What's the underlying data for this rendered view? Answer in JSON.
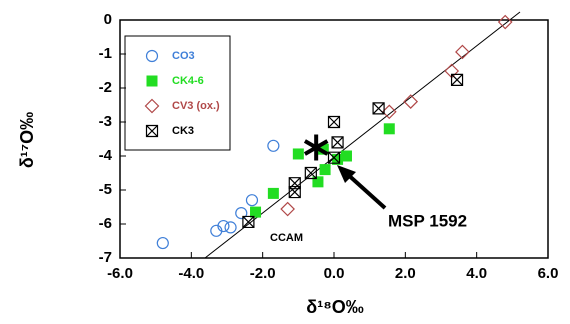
{
  "chart_data": {
    "type": "scatter",
    "xlabel": "δ¹⁸O‰",
    "ylabel": "δ¹⁷O‰",
    "xlim": [
      -6,
      6
    ],
    "ylim": [
      -7,
      0
    ],
    "xticks": [
      {
        "value": -6,
        "label": "-6.0"
      },
      {
        "value": -4,
        "label": "-4.0"
      },
      {
        "value": -2,
        "label": "-2.0"
      },
      {
        "value": 0,
        "label": "0.0"
      },
      {
        "value": 2,
        "label": "2.0"
      },
      {
        "value": 4,
        "label": "4.0"
      },
      {
        "value": 6,
        "label": "6.0"
      }
    ],
    "yticks": [
      0,
      -1,
      -2,
      -3,
      -4,
      -5,
      -6,
      -7
    ],
    "legend": "upper left",
    "series": [
      {
        "name": "CO3",
        "color": "#3f7fd8",
        "marker": "circle",
        "x": [
          -4.8,
          -3.3,
          -3.1,
          -2.9,
          -2.6,
          -2.3,
          -1.7
        ],
        "y": [
          -6.56,
          -6.2,
          -6.06,
          -6.1,
          -5.68,
          -5.3,
          -3.7
        ]
      },
      {
        "name": "CK4-6",
        "color": "#22dd22",
        "marker": "filled-square",
        "x": [
          -1.0,
          -1.7,
          -2.2,
          -0.3,
          -0.45,
          -0.25,
          0.1,
          0.35,
          1.55
        ],
        "y": [
          -3.94,
          -5.1,
          -5.65,
          -3.8,
          -4.76,
          -4.4,
          -4.1,
          -4.0,
          -3.2
        ]
      },
      {
        "name": "CV3 (ox.)",
        "color": "#b04848",
        "marker": "diamond",
        "x": [
          4.8,
          3.6,
          3.3,
          2.15,
          1.55,
          -1.3
        ],
        "y": [
          -0.06,
          -0.94,
          -1.5,
          -2.4,
          -2.7,
          -5.56
        ]
      },
      {
        "name": "CK3",
        "color": "#000000",
        "marker": "crossed-square",
        "x": [
          3.45,
          1.25,
          0.0,
          0.1,
          0.0,
          -0.65,
          -1.1,
          -1.1,
          -2.4
        ],
        "y": [
          -1.76,
          -2.6,
          -3.0,
          -3.6,
          -4.05,
          -4.5,
          -4.8,
          -5.06,
          -5.94
        ]
      }
    ],
    "annotations": [
      {
        "text": "MSP 1592",
        "x": -0.5,
        "y": -3.75
      },
      {
        "text": "CCAM"
      }
    ]
  }
}
